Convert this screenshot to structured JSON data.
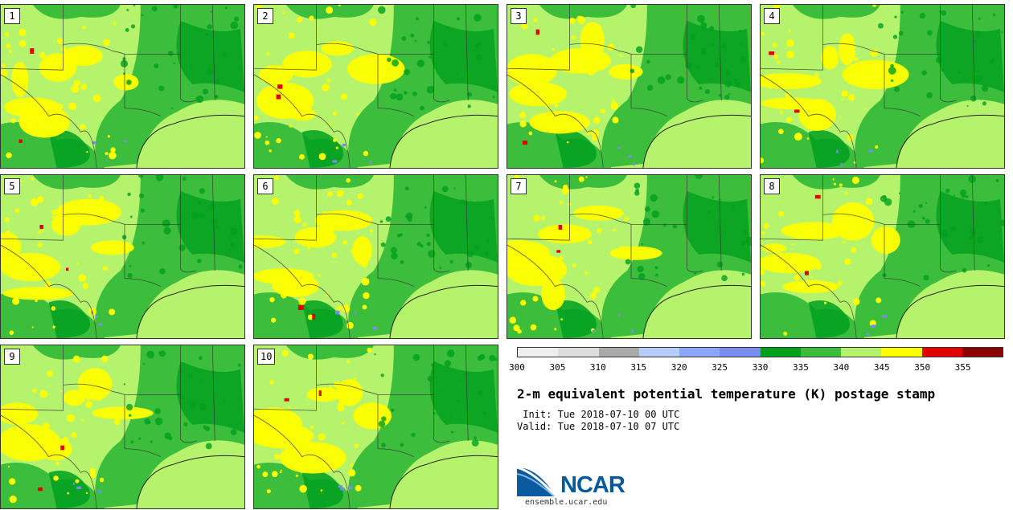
{
  "figure": {
    "title": "2-m equivalent potential temperature (K) postage stamp",
    "init_label": " Init:",
    "init_value": "Tue 2018-07-10 00 UTC",
    "valid_label": "Valid:",
    "valid_value": "Tue 2018-07-10 07 UTC"
  },
  "members": [
    "1",
    "2",
    "3",
    "4",
    "5",
    "6",
    "7",
    "8",
    "9",
    "10"
  ],
  "colorbar": {
    "tick_labels": [
      "300",
      "305",
      "310",
      "315",
      "320",
      "325",
      "330",
      "335",
      "340",
      "345",
      "350",
      "355"
    ],
    "colors": [
      "#eeeeee",
      "#dddddd",
      "#aaaaaa",
      "#b4cdfa",
      "#8ca5ff",
      "#7a8cf0",
      "#00a01e",
      "#3cbe3c",
      "#b6f36c",
      "#ffff00",
      "#e10000",
      "#8b0000"
    ]
  },
  "palette": {
    "base": "#b6f36c",
    "mid": "#3cbe3c",
    "dark": "#00a01e",
    "warm": "#ffff00",
    "hot": "#e10000",
    "water": "#7a8cf0"
  },
  "logo": {
    "name": "NCAR",
    "url": "ensemble.ucar.edu"
  }
}
